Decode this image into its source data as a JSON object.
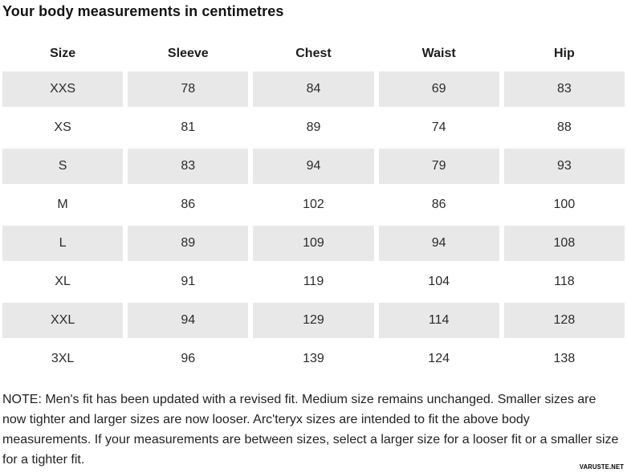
{
  "title": "Your body measurements in centimetres",
  "chart_data": {
    "type": "table",
    "title": "Your body measurements in centimetres",
    "units": "centimetres",
    "columns": [
      "Size",
      "Sleeve",
      "Chest",
      "Waist",
      "Hip"
    ],
    "rows": [
      [
        "XXS",
        78,
        84,
        69,
        83
      ],
      [
        "XS",
        81,
        89,
        74,
        88
      ],
      [
        "S",
        83,
        94,
        79,
        93
      ],
      [
        "M",
        86,
        102,
        86,
        100
      ],
      [
        "L",
        89,
        109,
        94,
        108
      ],
      [
        "XL",
        91,
        119,
        104,
        118
      ],
      [
        "XXL",
        94,
        129,
        114,
        128
      ],
      [
        "3XL",
        96,
        139,
        124,
        138
      ]
    ],
    "shaded_row_indices": [
      0,
      2,
      4,
      6
    ]
  },
  "note": "NOTE: Men's fit has been updated with a revised fit. Medium size remains unchanged. Smaller sizes are now tighter and larger sizes are now looser. Arc'teryx sizes are intended to fit the above body measurements. If your measurements are between sizes, select a larger size for a looser fit or a smaller size for a tighter fit.",
  "watermark": "VARUSTE.NET",
  "colors": {
    "row_shade": "#e8e8e8",
    "text": "#1f1f1f",
    "background": "#ffffff"
  }
}
